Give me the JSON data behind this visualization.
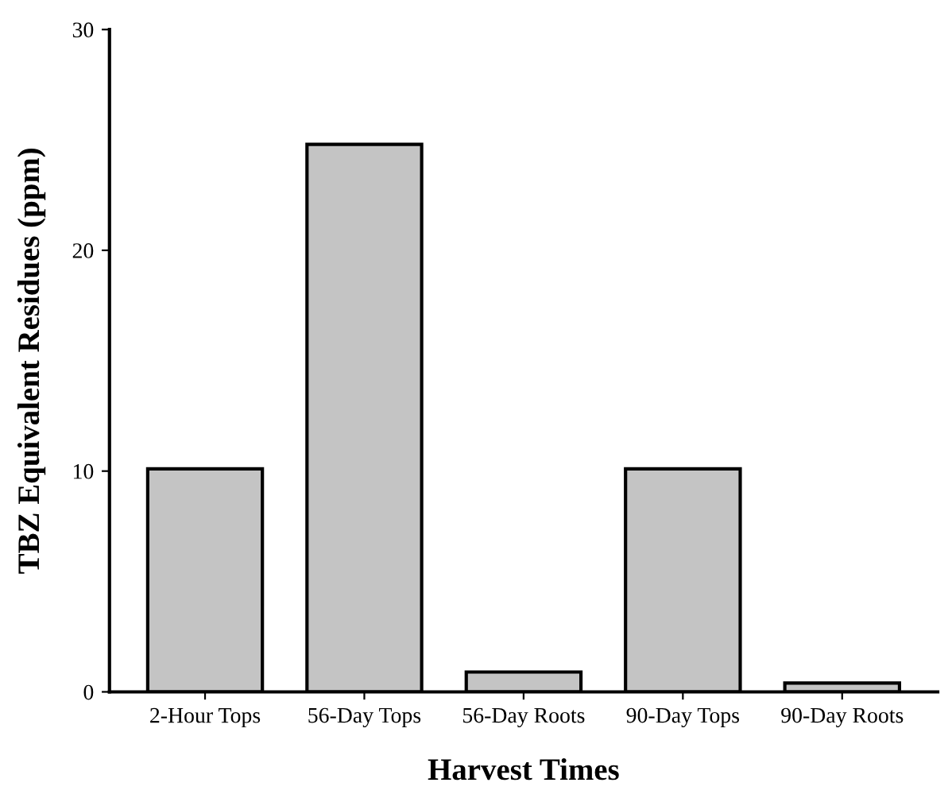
{
  "chart_data": {
    "type": "bar",
    "xlabel": "Harvest Times",
    "ylabel": "TBZ Equivalent Residues (ppm)",
    "categories": [
      "2-Hour Tops",
      "56-Day Tops",
      "56-Day Roots",
      "90-Day Tops",
      "90-Day Roots"
    ],
    "values": [
      10.1,
      24.8,
      0.9,
      10.1,
      0.4
    ],
    "color": "#c4c4c4",
    "ylim": [
      0,
      30
    ],
    "yticks": [
      0,
      10,
      20,
      30
    ],
    "grid": false,
    "legend": false
  }
}
